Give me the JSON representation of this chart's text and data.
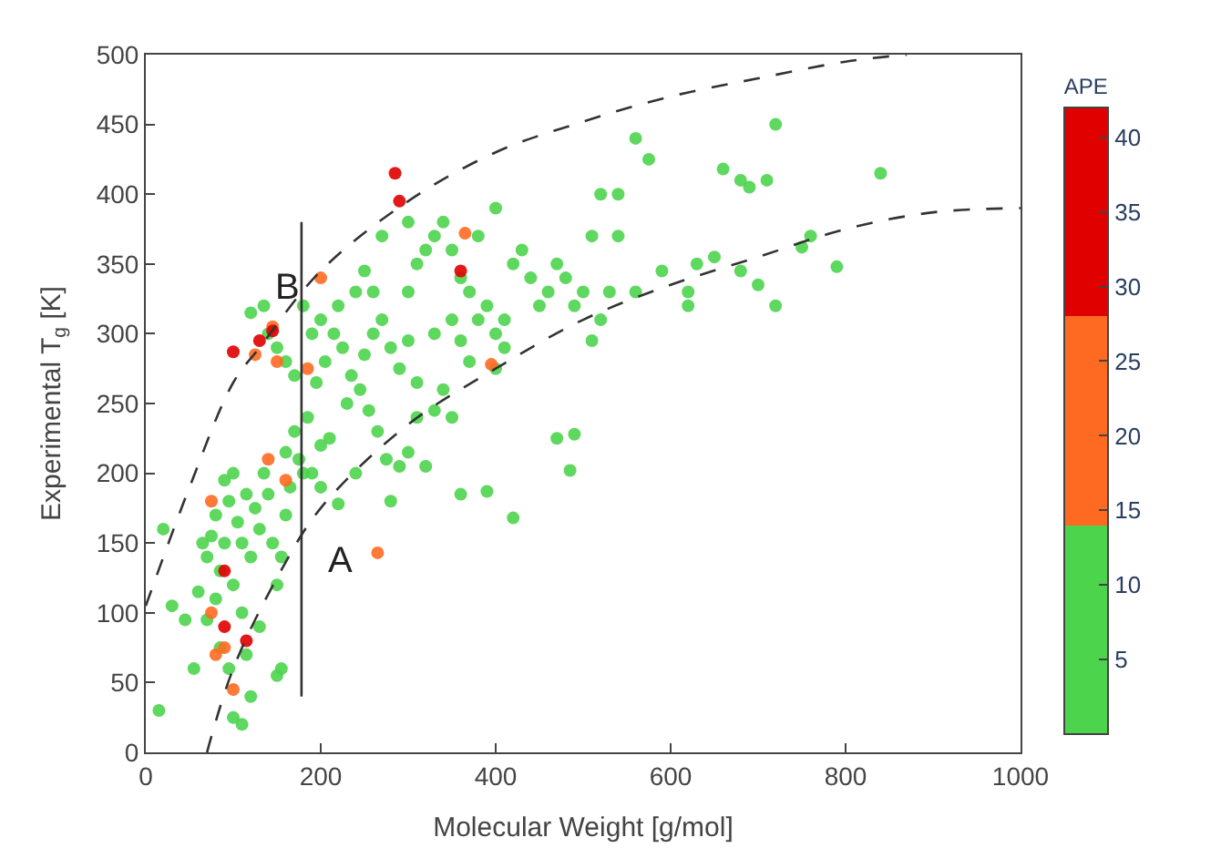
{
  "chart_data": {
    "type": "scatter",
    "xlabel": "Molecular Weight [g/mol]",
    "ylabel": "Experimental T$_{g}$ [K]",
    "clabel": "APE",
    "xlim": [
      0,
      1000
    ],
    "xticks": [
      0,
      200,
      400,
      600,
      800,
      1000
    ],
    "ylim": [
      0,
      500
    ],
    "yticks": [
      0,
      50,
      100,
      150,
      200,
      250,
      300,
      350,
      400,
      450,
      500
    ],
    "clim": [
      0,
      42
    ],
    "cticks": [
      5,
      10,
      15,
      20,
      25,
      30,
      35,
      40
    ],
    "colors": [
      "#4cd44c",
      "#ff6a22",
      "#e00000"
    ],
    "series": [
      {
        "marker": "circle",
        "x": [
          15,
          20,
          30,
          45,
          55,
          60,
          65,
          70,
          75,
          80,
          85,
          90,
          95,
          100,
          105,
          110,
          115,
          120,
          125,
          130,
          135,
          140,
          145,
          150,
          155,
          160,
          165,
          100,
          90,
          80,
          70,
          110,
          130,
          150,
          155,
          120,
          100,
          110,
          95,
          85,
          115,
          160,
          170,
          175,
          180,
          190,
          200,
          210,
          220,
          185,
          195,
          205,
          215,
          225,
          235,
          245,
          255,
          265,
          275,
          280,
          290,
          300,
          310,
          320,
          330,
          340,
          350,
          360,
          390,
          420,
          470,
          490,
          485,
          120,
          135,
          140,
          150,
          160,
          170,
          180,
          190,
          200,
          220,
          240,
          250,
          260,
          270,
          280,
          290,
          300,
          300,
          310,
          320,
          330,
          340,
          350,
          360,
          370,
          380,
          390,
          400,
          410,
          420,
          430,
          440,
          450,
          460,
          470,
          480,
          490,
          500,
          510,
          520,
          530,
          540,
          560,
          575,
          510,
          520,
          540,
          560,
          590,
          620,
          620,
          630,
          650,
          660,
          680,
          690,
          710,
          720,
          700,
          720,
          680,
          750,
          760,
          790,
          840,
          400,
          380,
          270,
          300,
          260,
          230,
          250,
          400,
          410,
          330,
          350,
          360,
          370,
          310,
          240,
          200,
          75,
          75,
          80,
          90,
          140,
          160,
          185,
          145,
          200,
          265,
          365,
          395,
          100,
          150,
          125,
          100,
          90,
          90,
          115,
          285,
          290,
          360,
          130,
          145
        ],
        "values": [
          30,
          160,
          105,
          95,
          60,
          115,
          150,
          140,
          155,
          170,
          130,
          195,
          180,
          200,
          165,
          150,
          185,
          140,
          175,
          160,
          200,
          185,
          150,
          120,
          140,
          170,
          190,
          120,
          150,
          110,
          95,
          100,
          90,
          55,
          60,
          40,
          25,
          20,
          60,
          75,
          70,
          215,
          230,
          210,
          200,
          200,
          220,
          225,
          178,
          240,
          265,
          280,
          300,
          290,
          270,
          260,
          245,
          230,
          210,
          180,
          205,
          215,
          240,
          205,
          245,
          260,
          240,
          185,
          187,
          168,
          225,
          228,
          202,
          315,
          320,
          300,
          290,
          280,
          270,
          320,
          300,
          310,
          320,
          330,
          345,
          300,
          310,
          290,
          275,
          295,
          330,
          350,
          360,
          370,
          380,
          360,
          340,
          330,
          310,
          320,
          300,
          290,
          350,
          360,
          340,
          320,
          330,
          350,
          340,
          320,
          330,
          295,
          310,
          330,
          400,
          440,
          425,
          370,
          400,
          370,
          330,
          345,
          330,
          320,
          350,
          355,
          418,
          410,
          405,
          410,
          450,
          335,
          320,
          345,
          362,
          370,
          348,
          415,
          390,
          370,
          370,
          380,
          330,
          250,
          285,
          275,
          310,
          300,
          310,
          295,
          280,
          265,
          200,
          190,
          180,
          100,
          70,
          75,
          210,
          195,
          275,
          305,
          340,
          143,
          372,
          278,
          45,
          280,
          285,
          287,
          130,
          90,
          80,
          415,
          395,
          345,
          295,
          302
        ],
        "colors": [
          "#4cd44c",
          "#4cd44c",
          "#4cd44c",
          "#4cd44c",
          "#4cd44c",
          "#4cd44c",
          "#4cd44c",
          "#4cd44c",
          "#4cd44c",
          "#4cd44c",
          "#4cd44c",
          "#4cd44c",
          "#4cd44c",
          "#4cd44c",
          "#4cd44c",
          "#4cd44c",
          "#4cd44c",
          "#4cd44c",
          "#4cd44c",
          "#4cd44c",
          "#4cd44c",
          "#4cd44c",
          "#4cd44c",
          "#4cd44c",
          "#4cd44c",
          "#4cd44c",
          "#4cd44c",
          "#4cd44c",
          "#4cd44c",
          "#4cd44c",
          "#4cd44c",
          "#4cd44c",
          "#4cd44c",
          "#4cd44c",
          "#4cd44c",
          "#4cd44c",
          "#4cd44c",
          "#4cd44c",
          "#4cd44c",
          "#4cd44c",
          "#4cd44c",
          "#4cd44c",
          "#4cd44c",
          "#4cd44c",
          "#4cd44c",
          "#4cd44c",
          "#4cd44c",
          "#4cd44c",
          "#4cd44c",
          "#4cd44c",
          "#4cd44c",
          "#4cd44c",
          "#4cd44c",
          "#4cd44c",
          "#4cd44c",
          "#4cd44c",
          "#4cd44c",
          "#4cd44c",
          "#4cd44c",
          "#4cd44c",
          "#4cd44c",
          "#4cd44c",
          "#4cd44c",
          "#4cd44c",
          "#4cd44c",
          "#4cd44c",
          "#4cd44c",
          "#4cd44c",
          "#4cd44c",
          "#4cd44c",
          "#4cd44c",
          "#4cd44c",
          "#4cd44c",
          "#4cd44c",
          "#4cd44c",
          "#4cd44c",
          "#4cd44c",
          "#4cd44c",
          "#4cd44c",
          "#4cd44c",
          "#4cd44c",
          "#4cd44c",
          "#4cd44c",
          "#4cd44c",
          "#4cd44c",
          "#4cd44c",
          "#4cd44c",
          "#4cd44c",
          "#4cd44c",
          "#4cd44c",
          "#4cd44c",
          "#4cd44c",
          "#4cd44c",
          "#4cd44c",
          "#4cd44c",
          "#4cd44c",
          "#4cd44c",
          "#4cd44c",
          "#4cd44c",
          "#4cd44c",
          "#4cd44c",
          "#4cd44c",
          "#4cd44c",
          "#4cd44c",
          "#4cd44c",
          "#4cd44c",
          "#4cd44c",
          "#4cd44c",
          "#4cd44c",
          "#4cd44c",
          "#4cd44c",
          "#4cd44c",
          "#4cd44c",
          "#4cd44c",
          "#4cd44c",
          "#4cd44c",
          "#4cd44c",
          "#4cd44c",
          "#4cd44c",
          "#4cd44c",
          "#4cd44c",
          "#4cd44c",
          "#4cd44c",
          "#4cd44c",
          "#4cd44c",
          "#4cd44c",
          "#4cd44c",
          "#4cd44c",
          "#4cd44c",
          "#4cd44c",
          "#4cd44c",
          "#4cd44c",
          "#4cd44c",
          "#4cd44c",
          "#4cd44c",
          "#4cd44c",
          "#4cd44c",
          "#4cd44c",
          "#4cd44c",
          "#4cd44c",
          "#4cd44c",
          "#4cd44c",
          "#4cd44c",
          "#4cd44c",
          "#4cd44c",
          "#4cd44c",
          "#4cd44c",
          "#4cd44c",
          "#4cd44c",
          "#4cd44c",
          "#4cd44c",
          "#4cd44c",
          "#4cd44c",
          "#4cd44c",
          "#ff6a22",
          "#ff6a22",
          "#ff6a22",
          "#ff6a22",
          "#ff6a22",
          "#ff6a22",
          "#ff6a22",
          "#ff6a22",
          "#ff6a22",
          "#ff6a22",
          "#ff6a22",
          "#ff6a22",
          "#ff6a22",
          "#ff6a22",
          "#ff6a22",
          "#e00000",
          "#e00000",
          "#e00000",
          "#e00000",
          "#e00000",
          "#e00000",
          "#e00000",
          "#e00000",
          "#e00000"
        ]
      },
      {
        "type": "line",
        "color": "#333333",
        "line_style": "dashed",
        "x": [
          0,
          50,
          100,
          130,
          200,
          300,
          400,
          500,
          600,
          700,
          800,
          870
        ],
        "values": [
          105,
          190,
          265,
          290,
          345,
          395,
          430,
          452,
          470,
          483,
          495,
          500
        ]
      },
      {
        "type": "line",
        "color": "#333333",
        "line_style": "dashed",
        "x": [
          70,
          100,
          150,
          200,
          300,
          400,
          500,
          600,
          700,
          800,
          900,
          1000
        ],
        "values": [
          0,
          60,
          125,
          175,
          235,
          275,
          310,
          335,
          355,
          375,
          387,
          390
        ]
      },
      {
        "type": "line",
        "color": "#333333",
        "line_style": "solid",
        "x": [
          178,
          178
        ],
        "values": [
          40,
          380
        ]
      }
    ],
    "annotations": [
      "A",
      "B"
    ]
  }
}
